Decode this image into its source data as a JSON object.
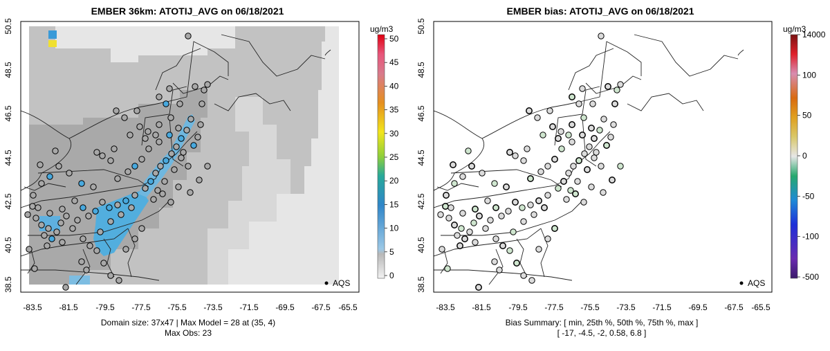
{
  "left_map": {
    "title": "EMBER 36km: ATOTIJ_AVG on 06/18/2021",
    "colorbar_unit": "ug/m3",
    "colorbar_ticks": [
      "50",
      "45",
      "40",
      "35",
      "30",
      "25",
      "20",
      "15",
      "10",
      "5",
      "0"
    ],
    "legend_label": "AQS",
    "caption_line1": "Domain size: 37x47 | Max Model = 28 at (35, 4)",
    "caption_line2": "Max Obs: 23"
  },
  "right_map": {
    "title": "EMBER bias: ATOTIJ_AVG on 06/18/2021",
    "colorbar_unit": "ug/m3",
    "colorbar_ticks": [
      "14000",
      "100",
      "50",
      "0",
      "-50",
      "-100",
      "-500"
    ],
    "legend_label": "AQS",
    "caption_line1": "Bias Summary: [ min, 25th %, 50th %, 75th %, max ]",
    "caption_line2": "[ -17,   -4.5,   -2,   0.58,   6.8 ]"
  },
  "axes": {
    "x_ticks": [
      "-83.5",
      "-81.5",
      "-79.5",
      "-77.5",
      "-75.5",
      "-73.5",
      "-71.5",
      "-69.5",
      "-67.5",
      "-65.5"
    ],
    "y_ticks": [
      "38.5",
      "40.5",
      "42.5",
      "44.5",
      "46.5",
      "48.5",
      "50.5"
    ]
  },
  "colors": {
    "model_gray": "#c3c3c3",
    "model_light": "#e4e4e4",
    "model_blue": "#48a9de",
    "obs_gray": "#a8a8a8",
    "bias_light": "#dcdcdc",
    "bias_green": "#cfe6cf"
  }
}
